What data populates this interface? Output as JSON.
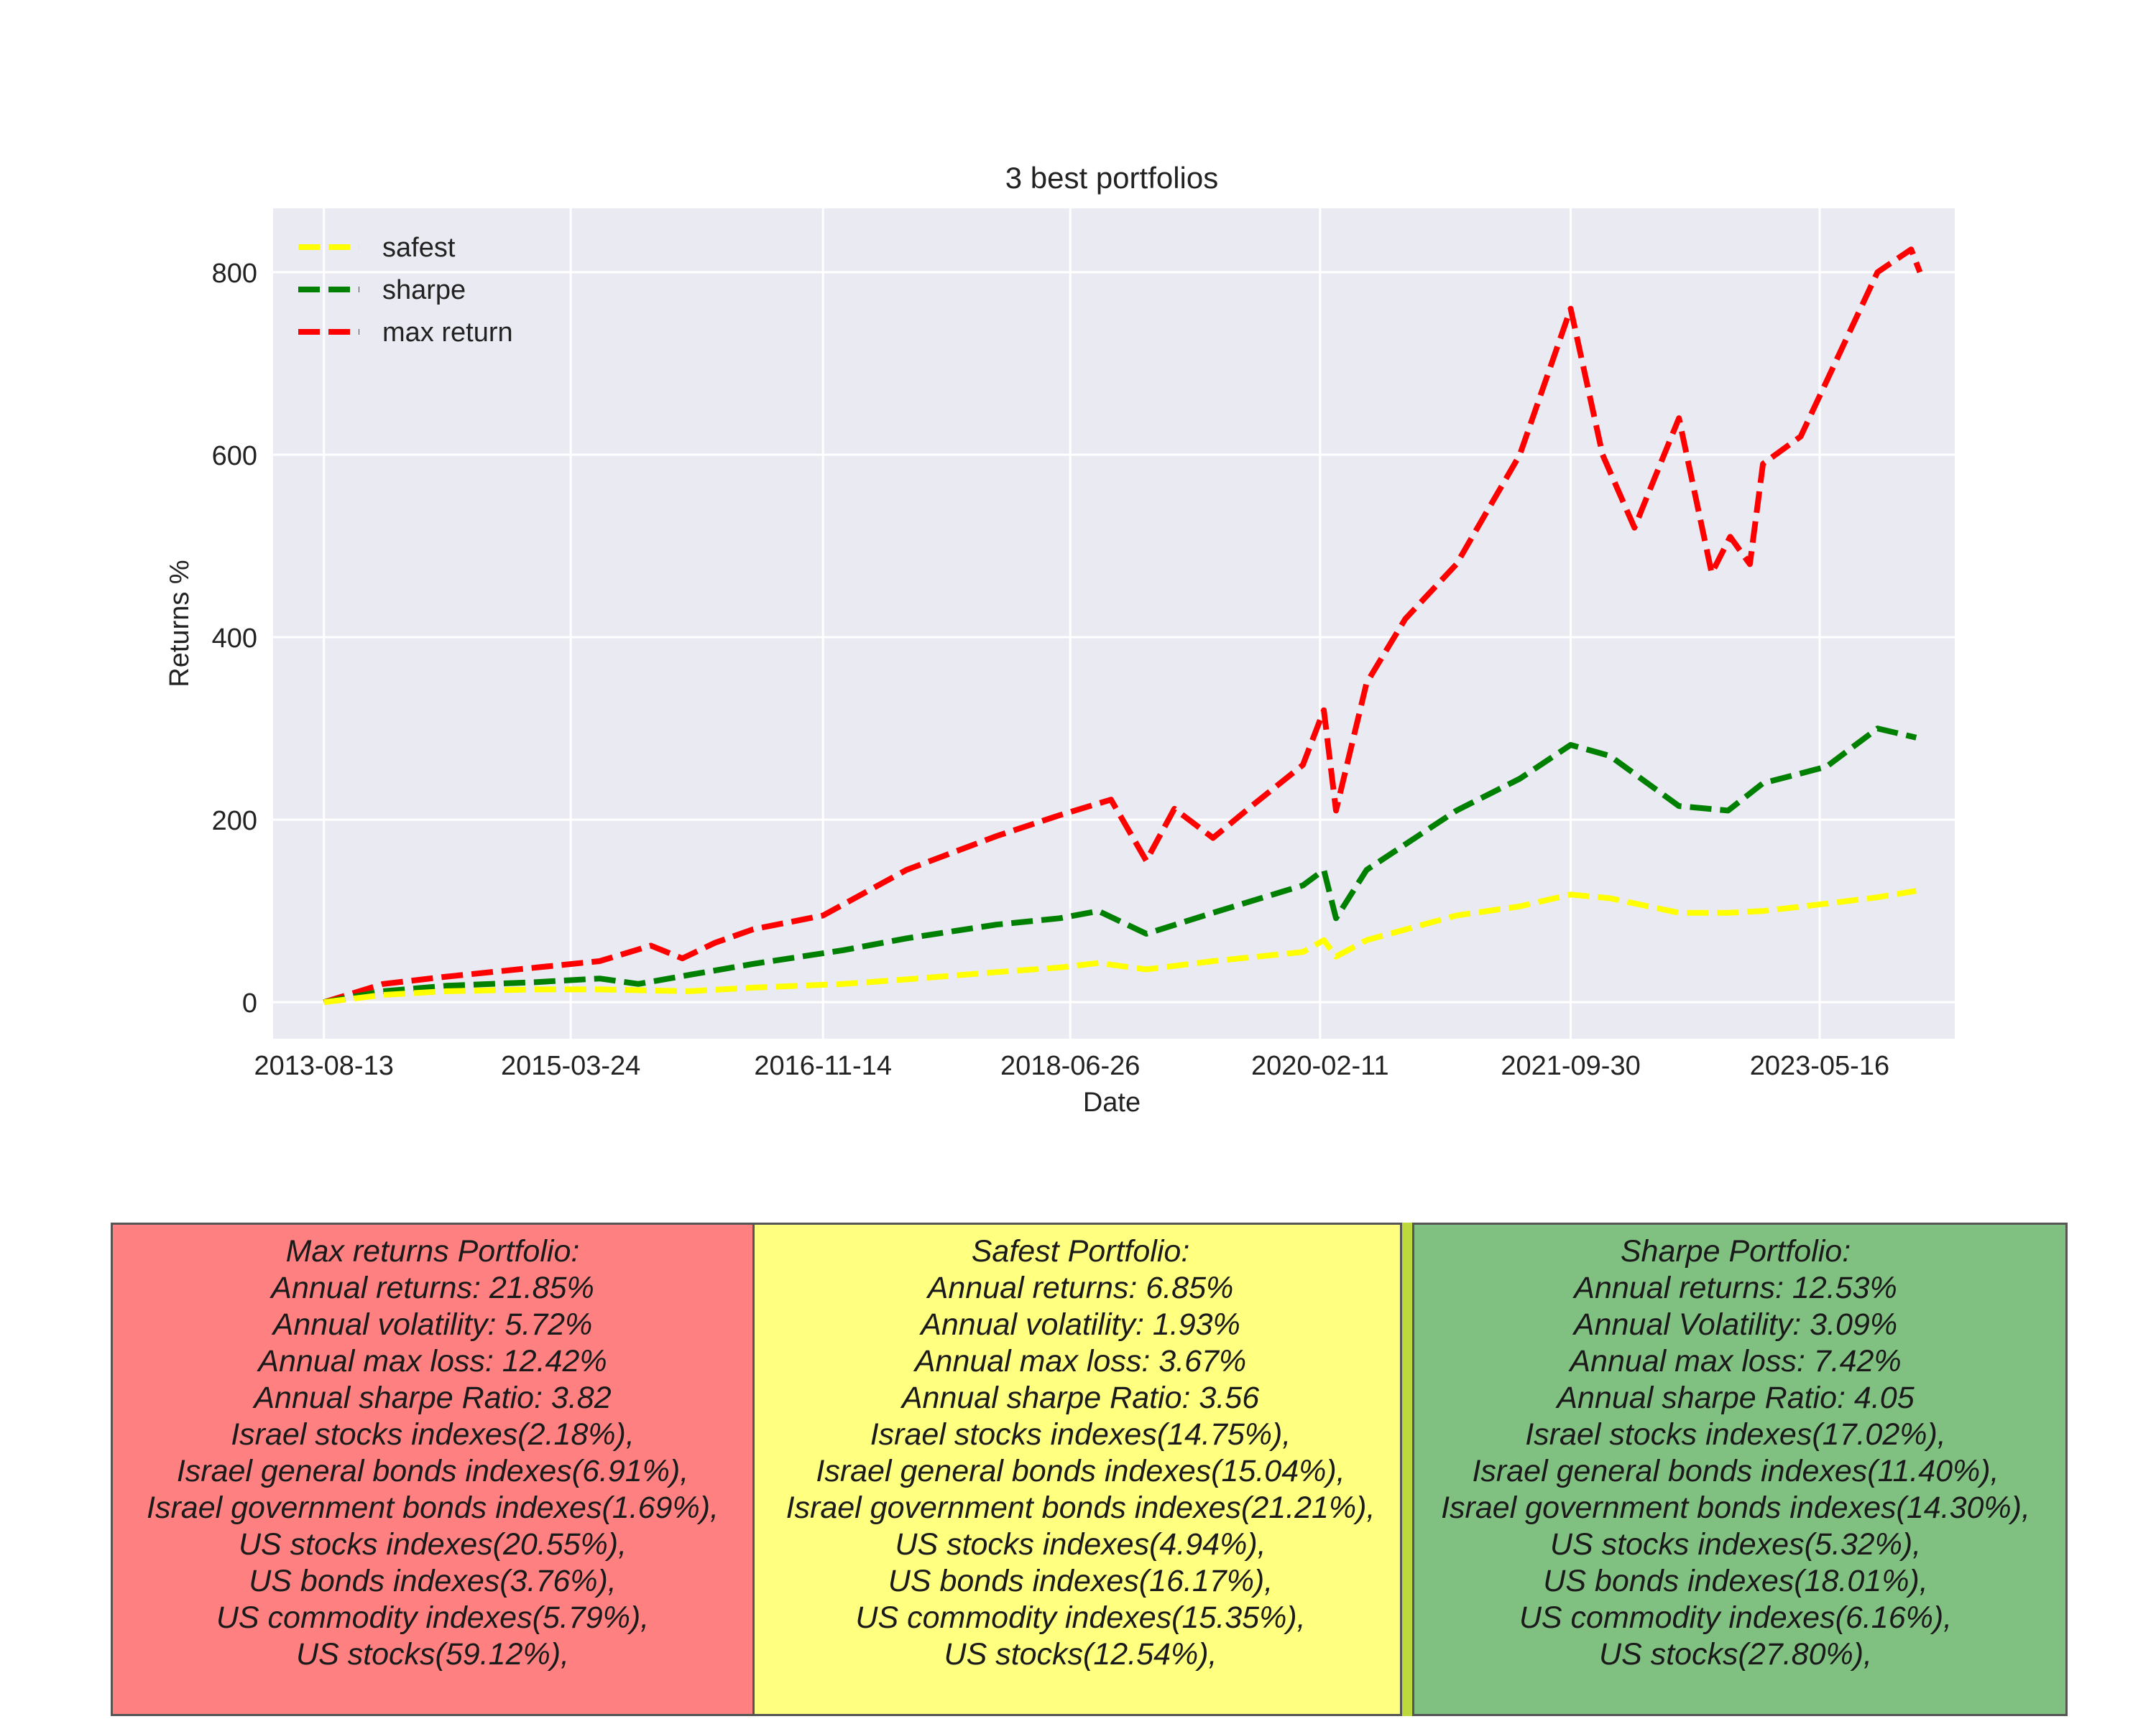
{
  "chart_data": {
    "type": "line",
    "title": "3 best portfolios",
    "xlabel": "Date",
    "ylabel": "Returns %",
    "x_tick_labels": [
      "2013-08-13",
      "2015-03-24",
      "2016-11-14",
      "2018-06-26",
      "2020-02-11",
      "2021-09-30",
      "2023-05-16"
    ],
    "y_ticks": [
      0,
      200,
      400,
      600,
      800
    ],
    "ylim": [
      -40,
      870
    ],
    "xlim": [
      "2013-04-14",
      "2024-04-02"
    ],
    "grid": true,
    "legend_position": "top-left",
    "series": [
      {
        "name": "safest",
        "color": "#ffff00",
        "x": [
          "2013-08-13",
          "2014-01-01",
          "2014-06-01",
          "2015-01-01",
          "2015-06-01",
          "2016-01-01",
          "2016-06-01",
          "2017-01-01",
          "2017-06-01",
          "2018-01-01",
          "2018-06-01",
          "2018-09-01",
          "2018-12-24",
          "2019-06-01",
          "2020-01-01",
          "2020-02-20",
          "2020-03-20",
          "2020-06-01",
          "2021-01-01",
          "2021-06-01",
          "2021-09-30",
          "2022-01-01",
          "2022-06-15",
          "2022-10-10",
          "2023-01-01",
          "2023-06-01",
          "2023-10-01",
          "2024-01-01"
        ],
        "y": [
          0,
          8,
          12,
          14,
          14,
          12,
          16,
          20,
          25,
          33,
          38,
          43,
          36,
          45,
          55,
          68,
          50,
          68,
          95,
          105,
          118,
          114,
          98,
          98,
          100,
          108,
          115,
          122
        ]
      },
      {
        "name": "sharpe",
        "color": "#008000",
        "x": [
          "2013-08-13",
          "2014-01-01",
          "2014-06-01",
          "2015-01-01",
          "2015-06-01",
          "2015-09-01",
          "2016-01-01",
          "2016-06-01",
          "2017-01-01",
          "2017-06-01",
          "2018-01-01",
          "2018-06-01",
          "2018-09-01",
          "2018-12-24",
          "2019-06-01",
          "2020-01-01",
          "2020-02-20",
          "2020-03-20",
          "2020-06-01",
          "2021-01-01",
          "2021-06-01",
          "2021-09-30",
          "2022-01-01",
          "2022-06-15",
          "2022-10-10",
          "2023-01-01",
          "2023-06-01",
          "2023-10-01",
          "2024-01-01"
        ],
        "y": [
          0,
          12,
          18,
          22,
          26,
          20,
          30,
          42,
          57,
          70,
          85,
          92,
          100,
          75,
          98,
          128,
          145,
          92,
          145,
          210,
          245,
          282,
          270,
          215,
          210,
          240,
          258,
          300,
          290
        ]
      },
      {
        "name": "max return",
        "color": "#ff0000",
        "x": [
          "2013-08-13",
          "2014-01-01",
          "2014-06-01",
          "2015-01-01",
          "2015-06-01",
          "2015-10-01",
          "2015-12-15",
          "2016-03-01",
          "2016-06-01",
          "2016-11-14",
          "2017-06-01",
          "2018-01-01",
          "2018-06-01",
          "2018-10-01",
          "2018-12-24",
          "2019-03-01",
          "2019-06-01",
          "2019-09-01",
          "2020-01-01",
          "2020-02-20",
          "2020-03-20",
          "2020-06-01",
          "2020-09-01",
          "2021-01-01",
          "2021-06-01",
          "2021-09-30",
          "2021-12-15",
          "2022-03-01",
          "2022-06-15",
          "2022-09-01",
          "2022-10-15",
          "2022-12-01",
          "2023-01-01",
          "2023-04-01",
          "2023-06-01",
          "2023-10-01",
          "2023-12-20",
          "2024-01-10"
        ],
        "y": [
          0,
          20,
          28,
          38,
          45,
          62,
          48,
          65,
          80,
          95,
          145,
          182,
          205,
          222,
          155,
          212,
          180,
          215,
          260,
          320,
          210,
          350,
          420,
          480,
          600,
          760,
          600,
          520,
          640,
          470,
          510,
          480,
          590,
          620,
          680,
          800,
          825,
          800
        ]
      }
    ]
  },
  "boxes": {
    "max": {
      "color": "#ff8080",
      "lines": [
        "Max returns Portfolio:",
        "Annual returns: 21.85%",
        "Annual volatility: 5.72%",
        "Annual max loss: 12.42%",
        "Annual sharpe Ratio: 3.82",
        "Israel stocks indexes(2.18%),",
        "Israel general bonds indexes(6.91%),",
        "Israel government bonds indexes(1.69%),",
        "US stocks indexes(20.55%),",
        "US bonds indexes(3.76%),",
        "US commodity indexes(5.79%),",
        "US stocks(59.12%),"
      ]
    },
    "safest": {
      "color": "#ffff80",
      "lines": [
        "Safest Portfolio:",
        "Annual returns: 6.85%",
        "Annual volatility: 1.93%",
        "Annual max loss: 3.67%",
        "Annual sharpe Ratio: 3.56",
        "Israel stocks indexes(14.75%),",
        "Israel general bonds indexes(15.04%),",
        "Israel government bonds indexes(21.21%),",
        "US stocks indexes(4.94%),",
        "US bonds indexes(16.17%),",
        "US commodity indexes(15.35%),",
        "US stocks(12.54%),"
      ]
    },
    "sharpe": {
      "color": "#80c080",
      "lines": [
        "Sharpe  Portfolio:",
        "Annual returns: 12.53%",
        "Annual Volatility: 3.09%",
        "Annual max loss: 7.42%",
        "Annual sharpe Ratio: 4.05",
        "Israel stocks indexes(17.02%),",
        "Israel general bonds indexes(11.40%),",
        "Israel government bonds indexes(14.30%),",
        "US stocks indexes(5.32%),",
        "US bonds indexes(18.01%),",
        "US commodity indexes(6.16%),",
        "US stocks(27.80%),"
      ]
    }
  }
}
